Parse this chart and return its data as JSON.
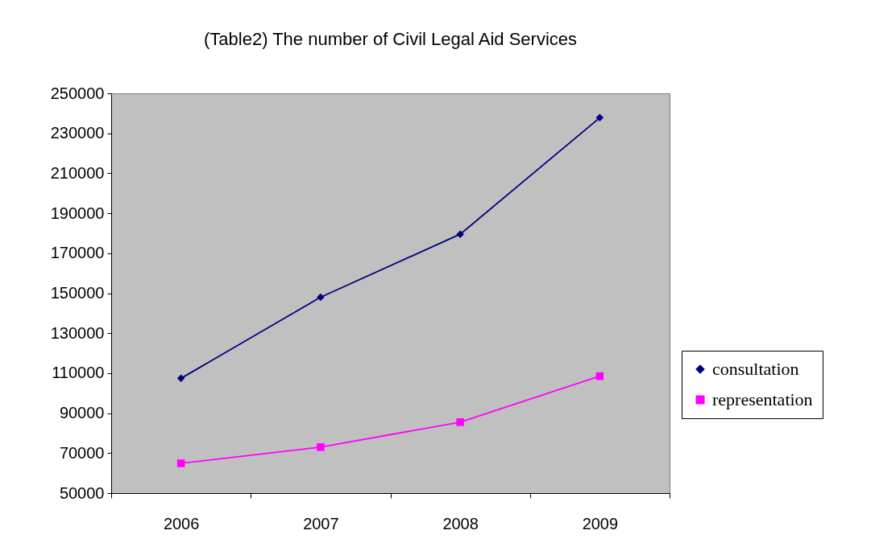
{
  "chart_data": {
    "type": "line",
    "title": "(Table2) The number of Civil Legal Aid Services",
    "categories": [
      "2006",
      "2007",
      "2008",
      "2009"
    ],
    "series": [
      {
        "name": "consultation",
        "color": "#000080",
        "marker": "diamond",
        "values": [
          107400,
          148000,
          179500,
          237800
        ]
      },
      {
        "name": "representation",
        "color": "#ff00ff",
        "marker": "square",
        "values": [
          64900,
          73000,
          85500,
          108500
        ]
      }
    ],
    "ylim": [
      50000,
      250000
    ],
    "yticks": [
      50000,
      70000,
      90000,
      110000,
      130000,
      150000,
      170000,
      190000,
      210000,
      230000,
      250000
    ],
    "grid": false,
    "legend": "right",
    "line_style": "solid"
  }
}
